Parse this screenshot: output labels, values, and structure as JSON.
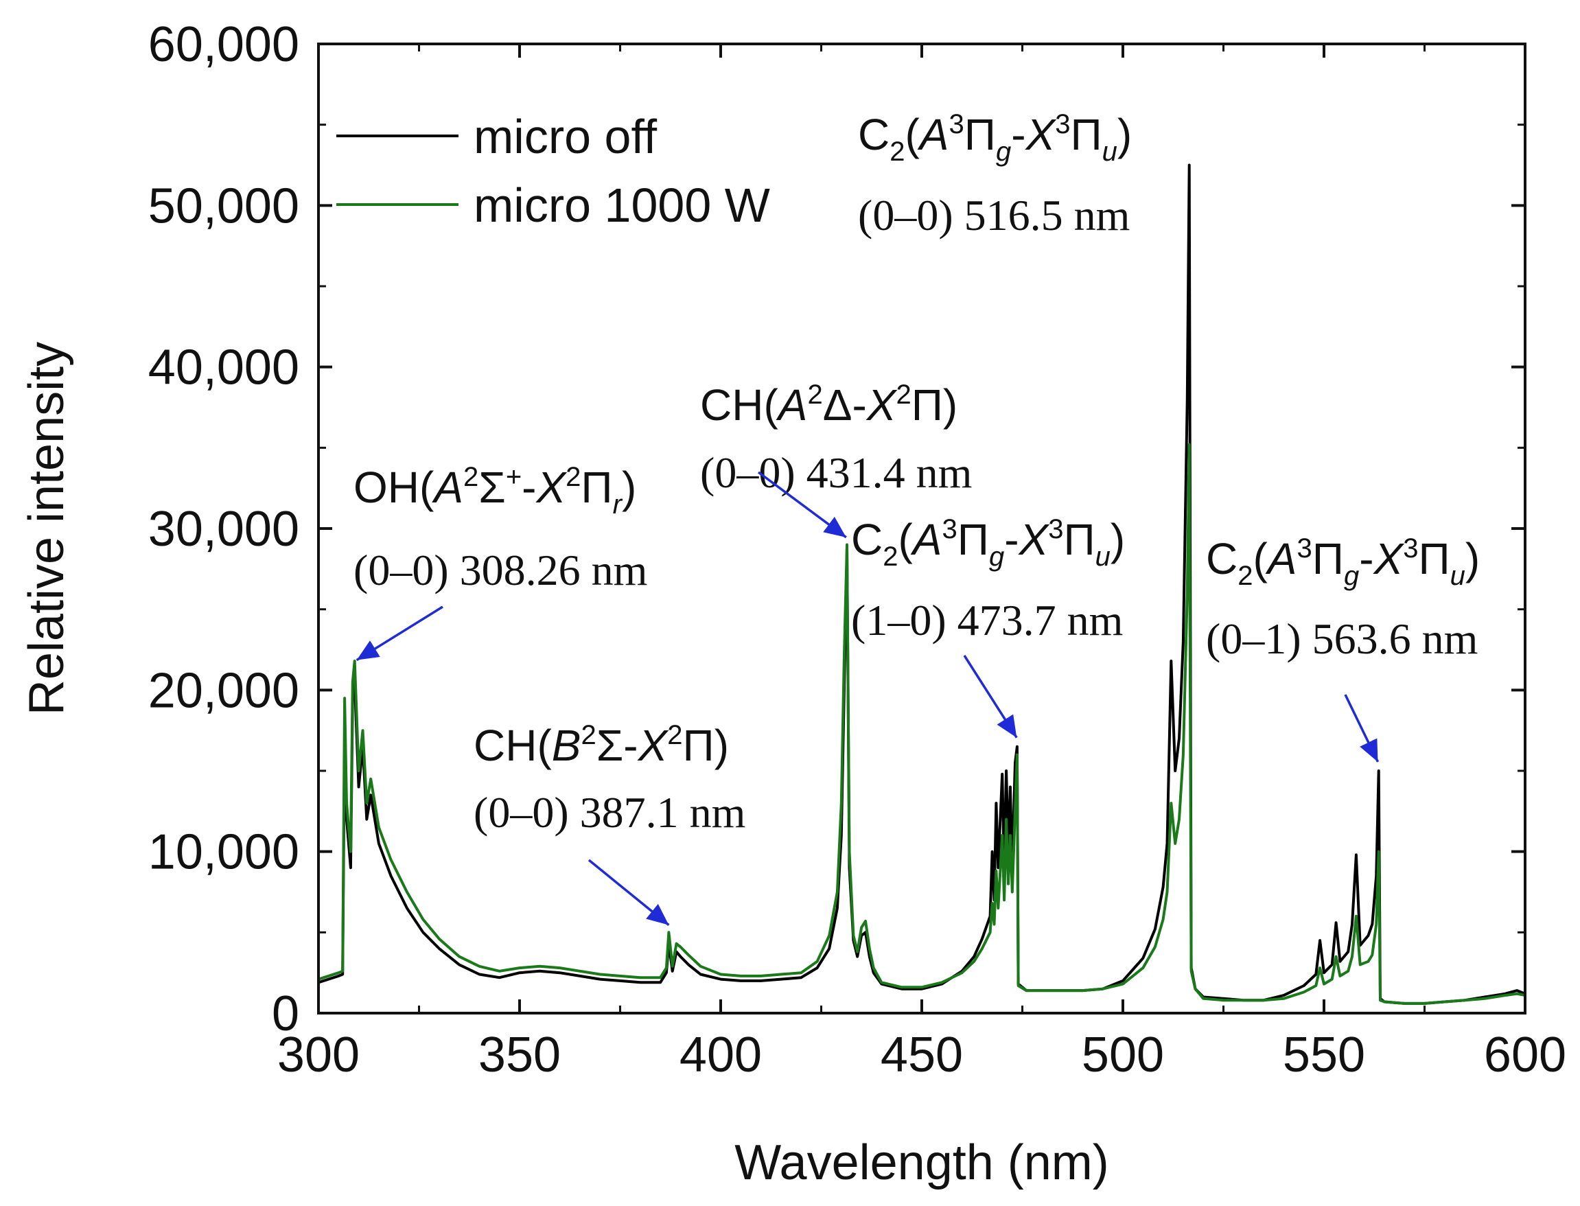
{
  "chart_data": {
    "type": "line",
    "xlabel": "Wavelength (nm)",
    "ylabel": "Relative intensity",
    "xlim": [
      300,
      600
    ],
    "ylim": [
      0,
      60000
    ],
    "x_ticks": [
      300,
      350,
      400,
      450,
      500,
      550,
      600
    ],
    "y_ticks": [
      0,
      10000,
      20000,
      30000,
      40000,
      50000,
      60000
    ],
    "x_tick_labels": [
      "300",
      "350",
      "400",
      "450",
      "500",
      "550",
      "600"
    ],
    "y_tick_labels": [
      "0",
      "10,000",
      "20,000",
      "30,000",
      "40,000",
      "50,000",
      "60,000"
    ],
    "legend": {
      "position": "top-left",
      "entries": [
        {
          "label": "micro off",
          "color": "#000000"
        },
        {
          "label": "micro 1000 W",
          "color": "#1a7a1a"
        }
      ]
    },
    "series": [
      {
        "name": "micro off",
        "color": "#000000",
        "points": [
          [
            300,
            1900
          ],
          [
            305,
            2300
          ],
          [
            306,
            2400
          ],
          [
            306.5,
            17000
          ],
          [
            307,
            12000
          ],
          [
            308,
            9000
          ],
          [
            308.5,
            19500
          ],
          [
            309,
            20500
          ],
          [
            310,
            14000
          ],
          [
            311,
            16500
          ],
          [
            312,
            12000
          ],
          [
            313,
            13500
          ],
          [
            315,
            10500
          ],
          [
            318,
            8500
          ],
          [
            322,
            6500
          ],
          [
            326,
            5000
          ],
          [
            330,
            4000
          ],
          [
            335,
            3000
          ],
          [
            340,
            2400
          ],
          [
            345,
            2200
          ],
          [
            350,
            2500
          ],
          [
            355,
            2600
          ],
          [
            360,
            2500
          ],
          [
            365,
            2300
          ],
          [
            370,
            2100
          ],
          [
            375,
            2000
          ],
          [
            380,
            1900
          ],
          [
            385,
            1900
          ],
          [
            386.5,
            2500
          ],
          [
            387.1,
            4300
          ],
          [
            388,
            2600
          ],
          [
            389,
            3800
          ],
          [
            390,
            3500
          ],
          [
            392,
            3000
          ],
          [
            395,
            2400
          ],
          [
            400,
            2100
          ],
          [
            405,
            2000
          ],
          [
            410,
            2000
          ],
          [
            415,
            2100
          ],
          [
            420,
            2200
          ],
          [
            424,
            2800
          ],
          [
            427,
            4000
          ],
          [
            429,
            6500
          ],
          [
            430,
            11000
          ],
          [
            430.7,
            20000
          ],
          [
            431.4,
            28800
          ],
          [
            432,
            9000
          ],
          [
            433,
            4500
          ],
          [
            434,
            3500
          ],
          [
            435,
            4800
          ],
          [
            436,
            5000
          ],
          [
            437,
            3500
          ],
          [
            438,
            2500
          ],
          [
            440,
            1800
          ],
          [
            445,
            1500
          ],
          [
            450,
            1500
          ],
          [
            455,
            1800
          ],
          [
            460,
            2600
          ],
          [
            463,
            3500
          ],
          [
            465,
            4600
          ],
          [
            467,
            6000
          ],
          [
            467.5,
            10000
          ],
          [
            468,
            7000
          ],
          [
            468.5,
            13000
          ],
          [
            469,
            9000
          ],
          [
            470,
            14800
          ],
          [
            470.5,
            9000
          ],
          [
            471,
            15000
          ],
          [
            471.5,
            10000
          ],
          [
            472,
            14000
          ],
          [
            472.5,
            9000
          ],
          [
            473.2,
            15500
          ],
          [
            473.7,
            16500
          ],
          [
            474,
            1800
          ],
          [
            476,
            1400
          ],
          [
            480,
            1400
          ],
          [
            485,
            1400
          ],
          [
            490,
            1400
          ],
          [
            495,
            1500
          ],
          [
            500,
            2000
          ],
          [
            505,
            3400
          ],
          [
            508,
            5200
          ],
          [
            510,
            7800
          ],
          [
            511,
            10500
          ],
          [
            512,
            21800
          ],
          [
            513,
            15000
          ],
          [
            514,
            17000
          ],
          [
            515,
            23000
          ],
          [
            516,
            38000
          ],
          [
            516.5,
            52500
          ],
          [
            517,
            2800
          ],
          [
            518,
            1500
          ],
          [
            520,
            1000
          ],
          [
            525,
            900
          ],
          [
            530,
            800
          ],
          [
            535,
            800
          ],
          [
            540,
            1100
          ],
          [
            545,
            1700
          ],
          [
            548,
            2400
          ],
          [
            549,
            4500
          ],
          [
            550,
            2500
          ],
          [
            552,
            3000
          ],
          [
            553,
            5600
          ],
          [
            554,
            3200
          ],
          [
            556,
            3800
          ],
          [
            557,
            5500
          ],
          [
            558,
            9800
          ],
          [
            559,
            4200
          ],
          [
            561,
            4800
          ],
          [
            562,
            5500
          ],
          [
            563,
            8500
          ],
          [
            563.6,
            15000
          ],
          [
            564,
            900
          ],
          [
            565,
            700
          ],
          [
            570,
            600
          ],
          [
            575,
            600
          ],
          [
            580,
            700
          ],
          [
            585,
            800
          ],
          [
            590,
            1000
          ],
          [
            595,
            1200
          ],
          [
            598,
            1400
          ],
          [
            600,
            1200
          ]
        ]
      },
      {
        "name": "micro 1000 W",
        "color": "#1a7a1a",
        "points": [
          [
            300,
            2100
          ],
          [
            305,
            2500
          ],
          [
            306,
            2600
          ],
          [
            306.5,
            19500
          ],
          [
            307,
            13000
          ],
          [
            308,
            10000
          ],
          [
            308.5,
            20500
          ],
          [
            309,
            21800
          ],
          [
            310,
            15000
          ],
          [
            311,
            17500
          ],
          [
            312,
            13000
          ],
          [
            313,
            14500
          ],
          [
            315,
            11500
          ],
          [
            318,
            9500
          ],
          [
            322,
            7500
          ],
          [
            326,
            5800
          ],
          [
            330,
            4600
          ],
          [
            335,
            3500
          ],
          [
            340,
            2900
          ],
          [
            345,
            2600
          ],
          [
            350,
            2800
          ],
          [
            355,
            2900
          ],
          [
            360,
            2800
          ],
          [
            365,
            2600
          ],
          [
            370,
            2400
          ],
          [
            375,
            2300
          ],
          [
            380,
            2200
          ],
          [
            385,
            2200
          ],
          [
            386.5,
            2800
          ],
          [
            387.1,
            5000
          ],
          [
            388,
            2900
          ],
          [
            389,
            4300
          ],
          [
            390,
            4100
          ],
          [
            392,
            3600
          ],
          [
            395,
            2900
          ],
          [
            400,
            2400
          ],
          [
            405,
            2300
          ],
          [
            410,
            2300
          ],
          [
            415,
            2400
          ],
          [
            420,
            2500
          ],
          [
            424,
            3200
          ],
          [
            427,
            4800
          ],
          [
            429,
            7500
          ],
          [
            430,
            13000
          ],
          [
            430.7,
            22000
          ],
          [
            431.4,
            29000
          ],
          [
            432,
            10000
          ],
          [
            433,
            4800
          ],
          [
            434,
            3800
          ],
          [
            435,
            5300
          ],
          [
            436,
            5700
          ],
          [
            437,
            4000
          ],
          [
            438,
            2800
          ],
          [
            440,
            1900
          ],
          [
            445,
            1600
          ],
          [
            450,
            1600
          ],
          [
            455,
            1900
          ],
          [
            460,
            2500
          ],
          [
            463,
            3200
          ],
          [
            465,
            4000
          ],
          [
            467,
            5000
          ],
          [
            467.5,
            6800
          ],
          [
            468,
            5500
          ],
          [
            468.5,
            8800
          ],
          [
            469,
            6500
          ],
          [
            470,
            11000
          ],
          [
            470.5,
            7000
          ],
          [
            471,
            12000
          ],
          [
            471.5,
            8000
          ],
          [
            472,
            11000
          ],
          [
            472.5,
            7500
          ],
          [
            473.2,
            12500
          ],
          [
            473.7,
            16000
          ],
          [
            474,
            1700
          ],
          [
            476,
            1400
          ],
          [
            480,
            1400
          ],
          [
            485,
            1400
          ],
          [
            490,
            1400
          ],
          [
            495,
            1500
          ],
          [
            500,
            1800
          ],
          [
            505,
            2800
          ],
          [
            508,
            4100
          ],
          [
            510,
            5800
          ],
          [
            511,
            7500
          ],
          [
            512,
            13000
          ],
          [
            513,
            10500
          ],
          [
            514,
            12000
          ],
          [
            515,
            16000
          ],
          [
            516,
            26000
          ],
          [
            516.5,
            35200
          ],
          [
            517,
            2600
          ],
          [
            518,
            1500
          ],
          [
            520,
            900
          ],
          [
            525,
            800
          ],
          [
            530,
            800
          ],
          [
            535,
            800
          ],
          [
            540,
            900
          ],
          [
            545,
            1300
          ],
          [
            548,
            1700
          ],
          [
            549,
            2800
          ],
          [
            550,
            1800
          ],
          [
            552,
            2100
          ],
          [
            553,
            3500
          ],
          [
            554,
            2300
          ],
          [
            556,
            2600
          ],
          [
            557,
            3500
          ],
          [
            558,
            6000
          ],
          [
            559,
            3000
          ],
          [
            561,
            3200
          ],
          [
            562,
            3600
          ],
          [
            563,
            5500
          ],
          [
            563.6,
            10000
          ],
          [
            564,
            800
          ],
          [
            565,
            700
          ],
          [
            570,
            600
          ],
          [
            575,
            600
          ],
          [
            580,
            700
          ],
          [
            585,
            800
          ],
          [
            590,
            900
          ],
          [
            595,
            1100
          ],
          [
            598,
            1200
          ],
          [
            600,
            1100
          ]
        ]
      }
    ],
    "annotations": [
      {
        "id": "oh",
        "species_text": "OH(",
        "sym1": "A",
        "sup1": "2",
        "mid": "Σ",
        "mid_sup": "+",
        "dash": "-",
        "sym2": "X",
        "sup2": "2",
        "end": "Π",
        "end_sub": "r",
        "close": ")",
        "band": "(0–0) 308.26 nm",
        "arrow_target": [
          309.5,
          21600
        ]
      },
      {
        "id": "ch_b",
        "species_text": "CH(",
        "sym1": "B",
        "sup1": "2",
        "mid": "Σ",
        "dash": "-",
        "sym2": "X",
        "sup2": "2",
        "end": "Π",
        "close": ")",
        "band": "(0–0) 387.1 nm",
        "arrow_target": [
          387.1,
          5200
        ]
      },
      {
        "id": "ch_a",
        "species_text": "CH(",
        "sym1": "A",
        "sup1": "2",
        "mid": "Δ",
        "dash": "-",
        "sym2": "X",
        "sup2": "2",
        "end": "Π",
        "close": ")",
        "band": "(0–0) 431.4 nm",
        "arrow_target": [
          431.2,
          29200
        ]
      },
      {
        "id": "c2_10",
        "species_text": "C",
        "species_sub": "2",
        "open": "(",
        "sym1": "A",
        "sup1": "3",
        "mid": "Π",
        "mid_sub": "g",
        "dash": "-",
        "sym2": "X",
        "sup2": "3",
        "end": "Π",
        "end_sub": "u",
        "close": ")",
        "band": "(1–0) 473.7 nm",
        "arrow_target": [
          473.6,
          16800
        ]
      },
      {
        "id": "c2_00",
        "species_text": "C",
        "species_sub": "2",
        "open": "(",
        "sym1": "A",
        "sup1": "3",
        "mid": "Π",
        "mid_sub": "g",
        "dash": "-",
        "sym2": "X",
        "sup2": "3",
        "end": "Π",
        "end_sub": "u",
        "close": ")",
        "band": "(0–0) 516.5 nm"
      },
      {
        "id": "c2_01",
        "species_text": "C",
        "species_sub": "2",
        "open": "(",
        "sym1": "A",
        "sup1": "3",
        "mid": "Π",
        "mid_sub": "g",
        "dash": "-",
        "sym2": "X",
        "sup2": "3",
        "end": "Π",
        "end_sub": "u",
        "close": ")",
        "band": "(0–1) 563.6 nm",
        "arrow_target": [
          563.4,
          15300
        ]
      }
    ],
    "annotation_arrow_color": "#1f2bd6"
  }
}
